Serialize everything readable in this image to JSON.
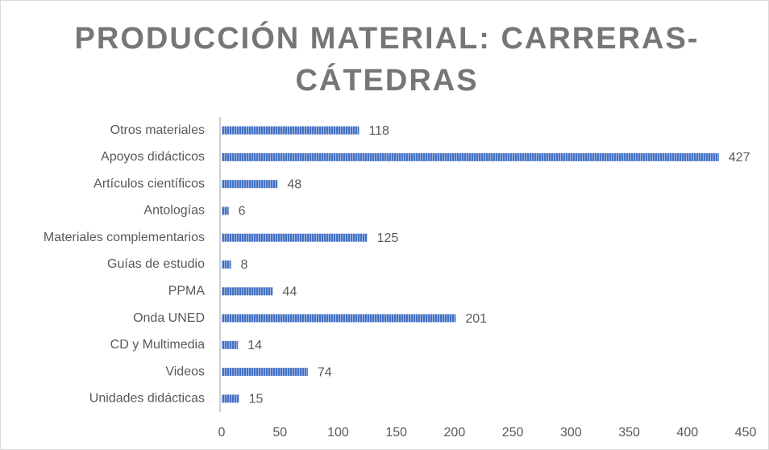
{
  "chart_data": {
    "type": "barh",
    "title": "PRODUCCIÓN MATERIAL: CARRERAS-CÁTEDRAS",
    "categories": [
      "Otros materiales",
      "Apoyos didácticos",
      "Artículos científicos",
      "Antologías",
      "Materiales complementarios",
      "Guías de estudio",
      "PPMA",
      "Onda UNED",
      "CD y Multimedia",
      "Videos",
      "Unidades didácticas"
    ],
    "values": [
      118,
      427,
      48,
      6,
      125,
      8,
      44,
      201,
      14,
      74,
      15
    ],
    "color": "#4472c4",
    "xlim": [
      0,
      450
    ],
    "xticks": [
      0,
      50,
      100,
      150,
      200,
      250,
      300,
      350,
      400,
      450
    ],
    "grid": false
  }
}
